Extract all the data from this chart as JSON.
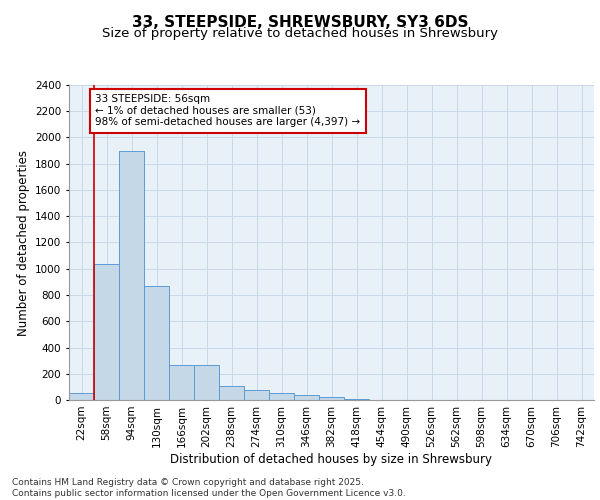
{
  "title": "33, STEEPSIDE, SHREWSBURY, SY3 6DS",
  "subtitle": "Size of property relative to detached houses in Shrewsbury",
  "xlabel": "Distribution of detached houses by size in Shrewsbury",
  "ylabel": "Number of detached properties",
  "categories": [
    "22sqm",
    "58sqm",
    "94sqm",
    "130sqm",
    "166sqm",
    "202sqm",
    "238sqm",
    "274sqm",
    "310sqm",
    "346sqm",
    "382sqm",
    "418sqm",
    "454sqm",
    "490sqm",
    "526sqm",
    "562sqm",
    "598sqm",
    "634sqm",
    "670sqm",
    "706sqm",
    "742sqm"
  ],
  "values": [
    50,
    1040,
    1900,
    870,
    265,
    265,
    110,
    75,
    55,
    35,
    20,
    10,
    0,
    0,
    0,
    0,
    0,
    0,
    0,
    0,
    0
  ],
  "bar_color": "#c5d8e8",
  "bar_edge_color": "#5b9bd5",
  "annotation_text": "33 STEEPSIDE: 56sqm\n← 1% of detached houses are smaller (53)\n98% of semi-detached houses are larger (4,397) →",
  "annotation_box_color": "#ffffff",
  "annotation_edge_color": "#cc0000",
  "vline_color": "#cc0000",
  "vline_x_index": 0.5,
  "ylim": [
    0,
    2400
  ],
  "yticks": [
    0,
    200,
    400,
    600,
    800,
    1000,
    1200,
    1400,
    1600,
    1800,
    2000,
    2200,
    2400
  ],
  "grid_color": "#c8d8e8",
  "background_color": "#e8f0f8",
  "footer_text": "Contains HM Land Registry data © Crown copyright and database right 2025.\nContains public sector information licensed under the Open Government Licence v3.0.",
  "title_fontsize": 11,
  "subtitle_fontsize": 9.5,
  "axis_label_fontsize": 8.5,
  "tick_fontsize": 7.5,
  "annotation_fontsize": 7.5,
  "footer_fontsize": 6.5
}
